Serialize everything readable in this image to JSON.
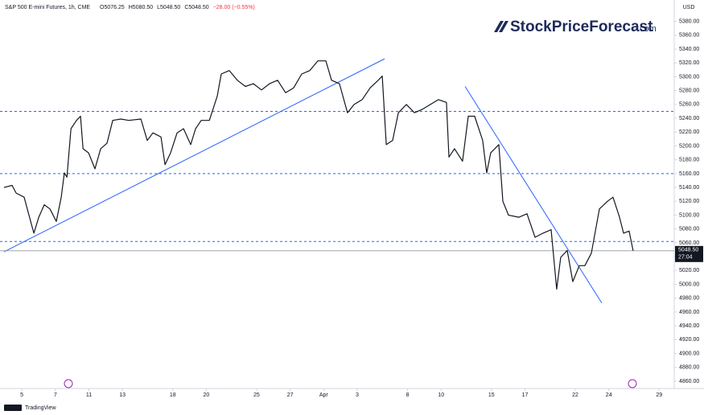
{
  "chart_data": {
    "type": "line",
    "title": "S&P 500 E-mini Futures, 1h, CME",
    "header_items": [
      "O5076.25",
      "H5080.50",
      "L5048.50",
      "C5048.50",
      "−28.00 (−0.55%)"
    ],
    "currency": "USD",
    "brand": "StockPriceForecast",
    "brand_suffix": ".com",
    "footer": "TradingView",
    "series": [
      {
        "name": "S&P 500 E-mini Futures",
        "color": "#131722",
        "x": [
          -1.06,
          -0.58,
          -0.34,
          0.14,
          0.53,
          0.72,
          1.01,
          1.34,
          1.68,
          2.06,
          2.35,
          2.54,
          2.69,
          2.93,
          3.26,
          3.5,
          3.65,
          3.98,
          4.36,
          4.7,
          5.08,
          5.42,
          5.9,
          6.38,
          7.1,
          7.48,
          7.82,
          8.3,
          8.54,
          8.87,
          9.26,
          9.64,
          10.07,
          10.36,
          10.7,
          11.18,
          11.65,
          11.89,
          12.37,
          12.85,
          13.33,
          13.81,
          14.29,
          14.77,
          15.25,
          15.73,
          16.21,
          16.69,
          17.17,
          17.65,
          18.13,
          18.47,
          18.94,
          19.42,
          19.81,
          20.29,
          20.77,
          21.25,
          21.49,
          21.73,
          22.11,
          22.45,
          22.93,
          23.41,
          23.88,
          24.36,
          24.84,
          25.32,
          25.47,
          25.8,
          26.28,
          26.62,
          27.0,
          27.48,
          27.72,
          27.96,
          28.44,
          28.68,
          29.02,
          29.64,
          30.12,
          30.6,
          31.08,
          31.56,
          31.89,
          32.13,
          32.52,
          32.85,
          33.24,
          33.57,
          33.96,
          34.44,
          34.92,
          35.25,
          35.64,
          35.88,
          36.21,
          36.45
        ],
        "values": [
          5140,
          5143,
          5132,
          5126,
          5091,
          5074,
          5097,
          5115,
          5109,
          5091,
          5126,
          5161,
          5155,
          5225,
          5237,
          5243,
          5196,
          5190,
          5167,
          5196,
          5204,
          5237,
          5239,
          5237,
          5239,
          5208,
          5219,
          5213,
          5173,
          5190,
          5219,
          5225,
          5202,
          5225,
          5237,
          5237,
          5272,
          5304,
          5309,
          5295,
          5286,
          5290,
          5281,
          5290,
          5295,
          5277,
          5284,
          5304,
          5309,
          5323,
          5323,
          5295,
          5290,
          5248,
          5260,
          5267,
          5284,
          5295,
          5301,
          5202,
          5208,
          5248,
          5260,
          5248,
          5253,
          5260,
          5267,
          5263,
          5184,
          5196,
          5178,
          5243,
          5243,
          5208,
          5161,
          5190,
          5202,
          5120,
          5100,
          5097,
          5102,
          5068,
          5074,
          5079,
          4993,
          5039,
          5049,
          5004,
          5027,
          5027,
          5045,
          5109,
          5120,
          5126,
          5097,
          5074,
          5077,
          5048.5
        ]
      }
    ],
    "levels": [
      5250,
      5160,
      5062
    ],
    "level_color": "#2962ff",
    "trendlines": [
      {
        "x": [
          -1.06,
          21.63
        ],
        "values": [
          5047,
          5326
        ]
      },
      {
        "x": [
          26.43,
          34.58
        ],
        "values": [
          5286,
          4973
        ]
      }
    ],
    "trend_color": "#2962ff",
    "last_price": {
      "value": 5048.5,
      "label": "5048.50"
    },
    "countdown": "27:04",
    "xlim": [
      -1.3,
      38.9
    ],
    "xticks": [
      {
        "value": 0,
        "label": "5"
      },
      {
        "value": 2,
        "label": "7"
      },
      {
        "value": 4,
        "label": "11"
      },
      {
        "value": 6,
        "label": "13"
      },
      {
        "value": 9,
        "label": "18"
      },
      {
        "value": 11,
        "label": "20"
      },
      {
        "value": 14,
        "label": "25"
      },
      {
        "value": 16,
        "label": "27"
      },
      {
        "value": 18,
        "label": "Apr"
      },
      {
        "value": 20,
        "label": "3"
      },
      {
        "value": 23,
        "label": "8"
      },
      {
        "value": 25,
        "label": "10"
      },
      {
        "value": 28,
        "label": "15"
      },
      {
        "value": 30,
        "label": "17"
      },
      {
        "value": 33,
        "label": "22"
      },
      {
        "value": 35,
        "label": "24"
      },
      {
        "value": 38,
        "label": "29"
      }
    ],
    "ylim": [
      4849.5,
      5411
    ],
    "yticks": [
      {
        "value": 4860,
        "label": "4860.00"
      },
      {
        "value": 4880,
        "label": "4880.00"
      },
      {
        "value": 4900,
        "label": "4900.00"
      },
      {
        "value": 4920,
        "label": "4920.00"
      },
      {
        "value": 4940,
        "label": "4940.00"
      },
      {
        "value": 4960,
        "label": "4960.00"
      },
      {
        "value": 4980,
        "label": "4980.00"
      },
      {
        "value": 5000,
        "label": "5000.00"
      },
      {
        "value": 5020,
        "label": "5020.00"
      },
      {
        "value": 5040,
        "label": "5040.00"
      },
      {
        "value": 5060,
        "label": "5060.00"
      },
      {
        "value": 5080,
        "label": "5080.00"
      },
      {
        "value": 5100,
        "label": "5100.00"
      },
      {
        "value": 5120,
        "label": "5120.00"
      },
      {
        "value": 5140,
        "label": "5140.00"
      },
      {
        "value": 5160,
        "label": "5160.00"
      },
      {
        "value": 5180,
        "label": "5180.00"
      },
      {
        "value": 5200,
        "label": "5200.00"
      },
      {
        "value": 5220,
        "label": "5220.00"
      },
      {
        "value": 5240,
        "label": "5240.00"
      },
      {
        "value": 5260,
        "label": "5260.00"
      },
      {
        "value": 5280,
        "label": "5280.00"
      },
      {
        "value": 5300,
        "label": "5300.00"
      },
      {
        "value": 5320,
        "label": "5320.00"
      },
      {
        "value": 5340,
        "label": "5340.00"
      },
      {
        "value": 5360,
        "label": "5360.00"
      },
      {
        "value": 5380,
        "label": "5380.00"
      }
    ]
  }
}
